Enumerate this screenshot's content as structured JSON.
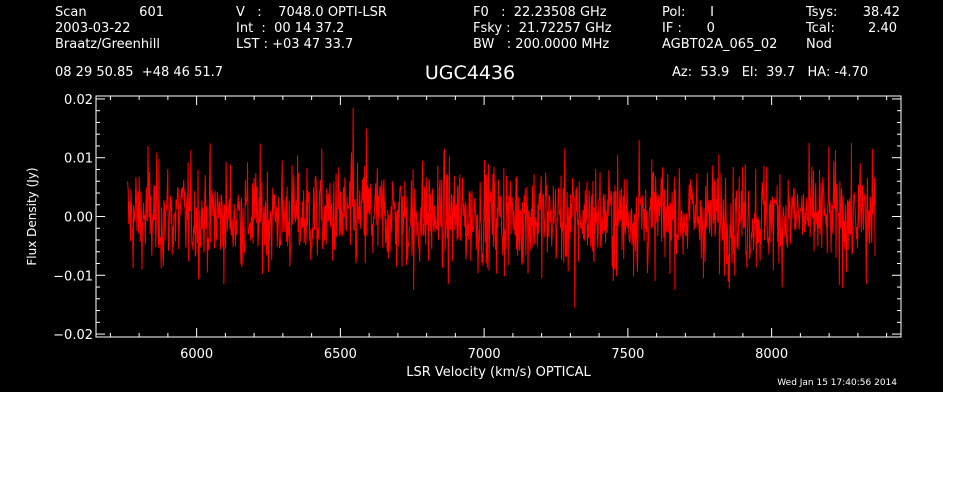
{
  "header": {
    "col1": [
      "Scan",
      "2003-03-22",
      "Braatz/Greenhill"
    ],
    "scan_number": "601",
    "col2": [
      "V   :    7048.0 OPTI-LSR",
      "Int  :  00 14 37.2",
      "LST : +03 47 33.7"
    ],
    "col3": [
      "F0   :  22.23508 GHz",
      "Fsky :  21.72257 GHz",
      "BW   : 200.0000 MHz"
    ],
    "col4": [
      "Pol:      I",
      "IF :      0",
      "AGBT02A_065_02"
    ],
    "col5_labels": [
      "Tsys:",
      "Tcal:",
      "Nod"
    ],
    "col5_values": [
      "38.42",
      "2.40",
      ""
    ],
    "coords": "08 29 50.85  +48 46 51.7",
    "pointing": "Az:  53.9   El:  39.7   HA: -4.70",
    "footer_date": "Wed Jan 15 17:40:56 2014"
  },
  "chart_data": {
    "type": "line",
    "title": "UGC4436",
    "xlabel": "LSR Velocity (km/s) OPTICAL",
    "ylabel": "Flux Density (Jy)",
    "xlim": [
      5650,
      8450
    ],
    "ylim": [
      -0.0205,
      0.0205
    ],
    "x_ticks": [
      6000,
      6500,
      7000,
      7500,
      8000
    ],
    "x_tick_labels": [
      "6000",
      "6500",
      "7000",
      "7500",
      "8000"
    ],
    "y_ticks": [
      -0.02,
      -0.01,
      0.0,
      0.01,
      0.02
    ],
    "y_tick_labels": [
      "−0.02",
      "−0.01",
      "0.00",
      "0.01",
      "0.02"
    ],
    "grid": false,
    "series": [
      {
        "x_start": 5760,
        "x_end": 8360,
        "rms": 0.0045,
        "color": "#ff0000",
        "peaks": [
          {
            "x": 6545,
            "y": 0.0185
          },
          {
            "x": 6590,
            "y": 0.015
          },
          {
            "x": 7315,
            "y": -0.0155
          },
          {
            "x": 5830,
            "y": 0.012
          },
          {
            "x": 8350,
            "y": 0.0115
          },
          {
            "x": 6755,
            "y": -0.0125
          },
          {
            "x": 7540,
            "y": 0.013
          },
          {
            "x": 8330,
            "y": -0.0115
          }
        ]
      }
    ]
  }
}
